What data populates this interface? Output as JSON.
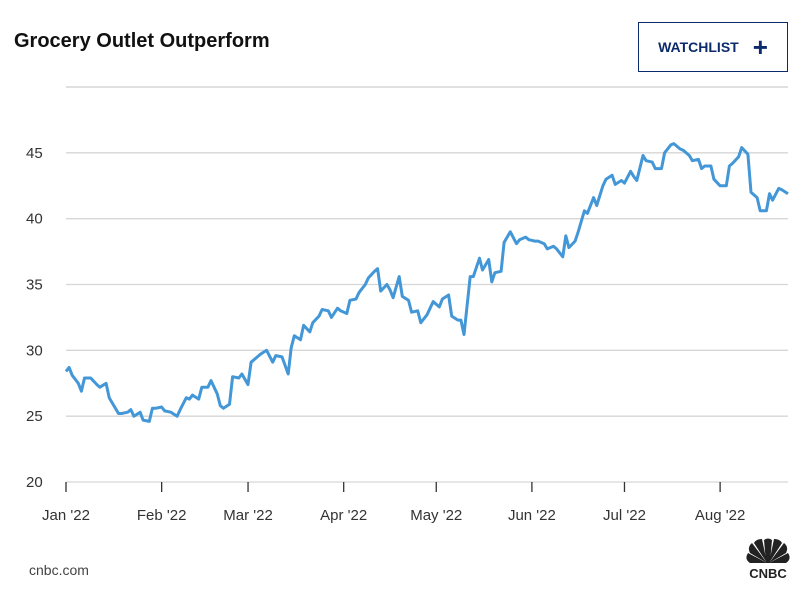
{
  "header": {
    "title": "Grocery Outlet Outperform",
    "watchlist_label": "WATCHLIST",
    "watchlist_icon": "plus-icon"
  },
  "footer": {
    "source": "cnbc.com",
    "logo_text": "CNBC"
  },
  "colors": {
    "line": "#4397d7",
    "grid": "#d6d6d6",
    "button": "#0c2b6b"
  },
  "chart_data": {
    "type": "line",
    "title": "Grocery Outlet Outperform",
    "xlabel": "",
    "ylabel": "",
    "ylim": [
      20,
      50
    ],
    "xlim": [
      0,
      234
    ],
    "x_unit": "days since Jan '22",
    "grid": true,
    "yticks": [
      20,
      25,
      30,
      35,
      40,
      45
    ],
    "xticks": [
      {
        "day": 0,
        "label": "Jan '22"
      },
      {
        "day": 31,
        "label": "Feb '22"
      },
      {
        "day": 59,
        "label": "Mar '22"
      },
      {
        "day": 90,
        "label": "Apr '22"
      },
      {
        "day": 120,
        "label": "May '22"
      },
      {
        "day": 151,
        "label": "Jun '22"
      },
      {
        "day": 181,
        "label": "Jul '22"
      },
      {
        "day": 212,
        "label": "Aug '22"
      }
    ],
    "series": [
      {
        "name": "Grocery Outlet",
        "x": [
          0,
          1,
          2,
          4,
          5,
          6,
          8,
          10,
          11,
          13,
          14,
          16,
          17,
          18,
          20,
          21,
          22,
          24,
          25,
          27,
          28,
          29,
          31,
          32,
          34,
          36,
          37,
          39,
          40,
          41,
          43,
          44,
          46,
          47,
          49,
          50,
          51,
          53,
          54,
          56,
          57,
          59,
          60,
          62,
          63,
          65,
          67,
          68,
          70,
          72,
          73,
          74,
          76,
          77,
          79,
          80,
          82,
          83,
          85,
          86,
          88,
          89,
          91,
          92,
          94,
          95,
          97,
          98,
          100,
          101,
          102,
          104,
          105,
          106,
          108,
          109,
          111,
          112,
          114,
          115,
          117,
          118,
          119,
          121,
          122,
          124,
          125,
          127,
          128,
          129,
          131,
          132,
          134,
          135,
          137,
          138,
          139,
          141,
          142,
          144,
          146,
          147,
          149,
          150,
          152,
          153,
          155,
          156,
          158,
          159,
          161,
          162,
          163,
          165,
          166,
          168,
          169,
          171,
          172,
          174,
          175,
          177,
          178,
          180,
          181,
          183,
          184,
          185,
          187,
          188,
          190,
          191,
          193,
          194,
          196,
          197,
          199,
          200,
          202,
          203,
          205,
          206,
          207,
          209,
          210,
          212,
          214,
          215,
          216,
          218,
          219,
          221,
          222,
          224,
          225,
          227,
          228,
          229,
          231,
          232,
          234
        ],
        "values": [
          28.4,
          28.7,
          28.1,
          27.5,
          26.9,
          27.9,
          27.9,
          27.4,
          27.2,
          27.5,
          26.4,
          25.6,
          25.2,
          25.2,
          25.3,
          25.5,
          25.0,
          25.3,
          24.7,
          24.6,
          25.6,
          25.6,
          25.7,
          25.4,
          25.3,
          25.0,
          25.5,
          26.4,
          26.3,
          26.6,
          26.3,
          27.2,
          27.2,
          27.7,
          26.7,
          25.8,
          25.6,
          25.9,
          28.0,
          27.9,
          28.2,
          27.4,
          29.1,
          29.5,
          29.7,
          30.0,
          29.1,
          29.6,
          29.5,
          28.2,
          30.2,
          31.1,
          30.8,
          31.9,
          31.4,
          32.1,
          32.6,
          33.1,
          33.0,
          32.5,
          33.2,
          33.0,
          32.8,
          33.8,
          33.9,
          34.4,
          35.0,
          35.5,
          36.0,
          36.2,
          34.5,
          35.0,
          34.6,
          34.0,
          35.6,
          34.1,
          33.8,
          32.9,
          33.0,
          32.1,
          32.7,
          33.2,
          33.7,
          33.3,
          33.9,
          34.2,
          32.6,
          32.3,
          32.3,
          31.2,
          35.6,
          35.6,
          37.0,
          36.1,
          36.9,
          35.2,
          35.9,
          36.0,
          38.2,
          39.0,
          38.1,
          38.4,
          38.6,
          38.4,
          38.3,
          38.3,
          38.1,
          37.7,
          37.9,
          37.7,
          37.1,
          38.7,
          37.8,
          38.3,
          39.0,
          40.6,
          40.4,
          41.6,
          41.0,
          42.5,
          43.0,
          43.3,
          42.6,
          42.9,
          42.7,
          43.6,
          43.2,
          42.9,
          44.8,
          44.4,
          44.3,
          43.8,
          43.8,
          45.0,
          45.6,
          45.7,
          45.3,
          45.2,
          44.8,
          44.4,
          44.5,
          43.8,
          44.0,
          44.0,
          43.0,
          42.5,
          42.5,
          44.0,
          44.2,
          44.7,
          45.4,
          44.9,
          42.0,
          41.6,
          40.6,
          40.6,
          41.9,
          41.4,
          42.3,
          42.2,
          41.9
        ]
      }
    ]
  }
}
